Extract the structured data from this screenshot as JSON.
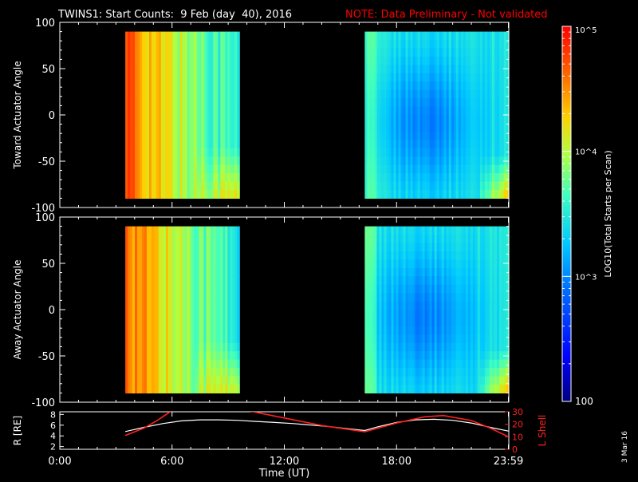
{
  "header": {
    "title": "TWINS1: Start Counts:  9 Feb (day  40), 2016",
    "note": "NOTE: Data Preliminary - Not validated"
  },
  "side_date": "3 Mar 16",
  "colors": {
    "background": "#000000",
    "axes": "#ffffff",
    "note": "#ff0000",
    "r_line": "#ffffff",
    "l_shell_line": "#ff2020"
  },
  "colorbar": {
    "label": "LOG10(Total Starts per Scan)",
    "tick_labels": [
      "100",
      "10^3",
      "10^4",
      "10^5"
    ],
    "tick_values": [
      100,
      1000,
      10000,
      100000
    ],
    "range": [
      100,
      100000
    ],
    "scale": "log"
  },
  "chart_data": [
    {
      "type": "heatmap",
      "name": "toward",
      "ylabel": "Toward Actuator Angle",
      "ylim": [
        -100,
        100
      ],
      "yticks": [
        -100,
        -50,
        0,
        50,
        100
      ],
      "xlim_hours": [
        0,
        24
      ],
      "data_blocks": [
        {
          "t_start_hours": 3.5,
          "t_end_hours": 9.6,
          "angle_range": [
            -90,
            90
          ],
          "description_level": "high counts (10^4-10^5) early, decreasing to ~10^3.5 later"
        },
        {
          "t_start_hours": 16.3,
          "t_end_hours": 24.0,
          "angle_range": [
            -90,
            90
          ],
          "description_level": "~10^3 blue, minimum near 0 to -40 deg around 19-20 UT"
        }
      ]
    },
    {
      "type": "heatmap",
      "name": "away",
      "ylabel": "Away Actuator Angle",
      "ylim": [
        -100,
        100
      ],
      "yticks": [
        -100,
        -50,
        0,
        50,
        100
      ],
      "xlim_hours": [
        0,
        24
      ],
      "data_blocks": [
        {
          "t_start_hours": 3.5,
          "t_end_hours": 9.6,
          "angle_range": [
            -90,
            90
          ],
          "description_level": "high counts (10^4-10^5) early, decreasing to ~10^3.5 later"
        },
        {
          "t_start_hours": 16.3,
          "t_end_hours": 24.0,
          "angle_range": [
            -90,
            90
          ],
          "description_level": "~10^3 blue, minimum near 0 to -30 deg around 19-21 UT"
        }
      ]
    },
    {
      "type": "line",
      "name": "orbit",
      "ylabel": "R [RE]",
      "ylabel_right": "L Shell",
      "ylim": [
        1.5,
        8.5
      ],
      "yticks": [
        2,
        4,
        6,
        8
      ],
      "ylim_right": [
        0,
        30
      ],
      "yticks_right": [
        0,
        10,
        20,
        30
      ],
      "xlabel": "Time (UT)",
      "xlim_hours": [
        0,
        24
      ],
      "xtick_hours": [
        0,
        6,
        12,
        18,
        23.98
      ],
      "xtick_labels": [
        "0:00",
        "6:00",
        "12:00",
        "18:00",
        "23:59"
      ],
      "series": [
        {
          "name": "R",
          "axis": "left",
          "x": [
            3.5,
            4.5,
            5.5,
            6.5,
            7.5,
            8.5,
            9.5,
            10.5,
            11.5,
            12.5,
            13.5,
            14.5,
            15.5,
            16.3,
            17,
            18,
            19,
            20,
            21,
            22,
            23,
            23.98
          ],
          "y": [
            4.8,
            5.6,
            6.3,
            6.8,
            7.0,
            7.0,
            6.9,
            6.7,
            6.5,
            6.3,
            6.0,
            5.7,
            5.3,
            5.0,
            5.7,
            6.5,
            7.0,
            7.1,
            6.9,
            6.4,
            5.6,
            4.9
          ]
        },
        {
          "name": "L Shell",
          "axis": "right",
          "x": [
            3.5,
            4.5,
            5.2,
            5.8,
            6.0,
            9.5,
            10.0,
            12,
            14,
            16.3,
            18,
            19.5,
            20.5,
            22,
            23,
            23.98
          ],
          "y": [
            11,
            17,
            23,
            29,
            31,
            null,
            31,
            25,
            19,
            14,
            21,
            26,
            27,
            23,
            17,
            10
          ]
        }
      ]
    }
  ]
}
